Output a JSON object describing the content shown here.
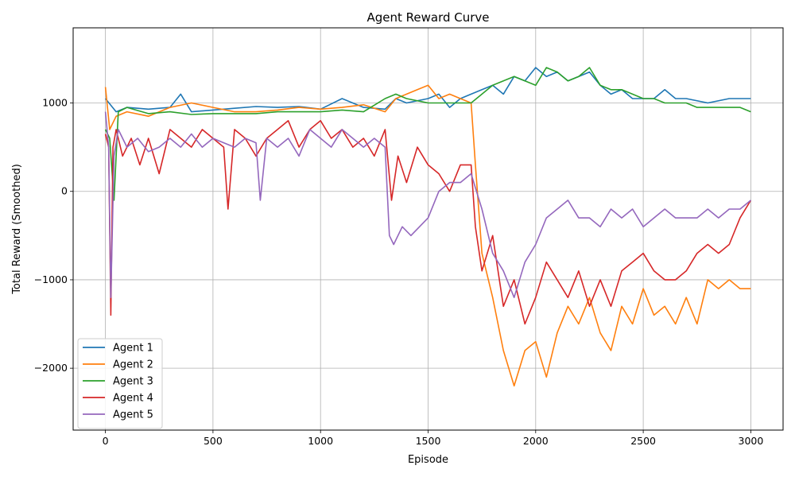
{
  "chart_data": {
    "type": "line",
    "title": "Agent Reward Curve",
    "xlabel": "Episode",
    "ylabel": "Total Reward (Smoothed)",
    "xlim": [
      -150,
      3150
    ],
    "ylim": [
      -2700,
      1850
    ],
    "xticks": [
      0,
      500,
      1000,
      1500,
      2000,
      2500,
      3000
    ],
    "yticks": [
      -2000,
      -1000,
      0,
      1000
    ],
    "grid": true,
    "legend_position": "lower-left",
    "series": [
      {
        "name": "Agent 1",
        "color": "#1f77b4",
        "x": [
          0,
          50,
          100,
          200,
          300,
          350,
          400,
          500,
          600,
          700,
          800,
          900,
          1000,
          1100,
          1200,
          1300,
          1350,
          1400,
          1500,
          1550,
          1600,
          1650,
          1700,
          1750,
          1800,
          1850,
          1900,
          1950,
          2000,
          2050,
          2100,
          2150,
          2200,
          2250,
          2300,
          2350,
          2400,
          2450,
          2500,
          2550,
          2600,
          2650,
          2700,
          2800,
          2900,
          3000
        ],
        "y": [
          1050,
          900,
          950,
          930,
          950,
          1100,
          900,
          920,
          940,
          960,
          950,
          960,
          930,
          1050,
          950,
          930,
          1050,
          1000,
          1050,
          1100,
          950,
          1050,
          1100,
          1150,
          1200,
          1100,
          1300,
          1250,
          1400,
          1300,
          1350,
          1250,
          1300,
          1350,
          1200,
          1100,
          1150,
          1050,
          1050,
          1050,
          1150,
          1050,
          1050,
          1000,
          1050,
          1050
        ]
      },
      {
        "name": "Agent 2",
        "color": "#ff7f0e",
        "x": [
          0,
          20,
          50,
          100,
          200,
          300,
          400,
          500,
          600,
          700,
          800,
          900,
          1000,
          1100,
          1200,
          1300,
          1350,
          1400,
          1450,
          1500,
          1550,
          1600,
          1650,
          1700,
          1720,
          1750,
          1800,
          1850,
          1900,
          1950,
          2000,
          2050,
          2100,
          2150,
          2200,
          2250,
          2300,
          2350,
          2400,
          2450,
          2500,
          2550,
          2600,
          2650,
          2700,
          2750,
          2800,
          2850,
          2900,
          2950,
          3000
        ],
        "y": [
          1180,
          700,
          850,
          900,
          850,
          950,
          1000,
          950,
          900,
          900,
          920,
          950,
          930,
          950,
          980,
          900,
          1050,
          1100,
          1150,
          1200,
          1050,
          1100,
          1050,
          1000,
          300,
          -700,
          -1200,
          -1800,
          -2200,
          -1800,
          -1700,
          -2100,
          -1600,
          -1300,
          -1500,
          -1200,
          -1600,
          -1800,
          -1300,
          -1500,
          -1100,
          -1400,
          -1300,
          -1500,
          -1200,
          -1500,
          -1000,
          -1100,
          -1000,
          -1100,
          -1100
        ]
      },
      {
        "name": "Agent 3",
        "color": "#2ca02c",
        "x": [
          0,
          20,
          40,
          60,
          100,
          200,
          300,
          400,
          500,
          600,
          700,
          800,
          900,
          1000,
          1100,
          1200,
          1300,
          1350,
          1400,
          1500,
          1600,
          1700,
          1750,
          1800,
          1850,
          1900,
          1950,
          2000,
          2050,
          2100,
          2150,
          2200,
          2250,
          2300,
          2350,
          2400,
          2450,
          2500,
          2550,
          2600,
          2650,
          2700,
          2750,
          2800,
          2850,
          2900,
          2950,
          3000
        ],
        "y": [
          700,
          600,
          -100,
          900,
          950,
          880,
          900,
          870,
          880,
          880,
          880,
          900,
          900,
          900,
          920,
          900,
          1050,
          1100,
          1050,
          1000,
          1000,
          1000,
          1100,
          1200,
          1250,
          1300,
          1250,
          1200,
          1400,
          1350,
          1250,
          1300,
          1400,
          1200,
          1150,
          1150,
          1100,
          1050,
          1050,
          1000,
          1000,
          1000,
          950,
          950,
          950,
          950,
          950,
          900
        ]
      },
      {
        "name": "Agent 4",
        "color": "#d62728",
        "x": [
          0,
          15,
          25,
          35,
          50,
          80,
          120,
          160,
          200,
          250,
          300,
          350,
          400,
          450,
          500,
          550,
          570,
          600,
          650,
          700,
          750,
          800,
          850,
          900,
          950,
          1000,
          1050,
          1100,
          1150,
          1200,
          1250,
          1300,
          1330,
          1360,
          1400,
          1450,
          1500,
          1550,
          1600,
          1650,
          1700,
          1720,
          1750,
          1800,
          1850,
          1900,
          1950,
          2000,
          2050,
          2100,
          2150,
          2200,
          2250,
          2300,
          2350,
          2400,
          2450,
          2500,
          2550,
          2600,
          2650,
          2700,
          2750,
          2800,
          2850,
          2900,
          2950,
          3000
        ],
        "y": [
          650,
          500,
          -1400,
          500,
          700,
          400,
          600,
          300,
          600,
          200,
          700,
          600,
          500,
          700,
          600,
          500,
          -200,
          700,
          600,
          400,
          600,
          700,
          800,
          500,
          700,
          800,
          600,
          700,
          500,
          600,
          400,
          700,
          -100,
          400,
          100,
          500,
          300,
          200,
          0,
          300,
          300,
          -400,
          -900,
          -500,
          -1300,
          -1000,
          -1500,
          -1200,
          -800,
          -1000,
          -1200,
          -900,
          -1300,
          -1000,
          -1300,
          -900,
          -800,
          -700,
          -900,
          -1000,
          -1000,
          -900,
          -700,
          -600,
          -700,
          -600,
          -300,
          -100
        ]
      },
      {
        "name": "Agent 5",
        "color": "#9467bd",
        "x": [
          0,
          15,
          25,
          40,
          60,
          100,
          150,
          200,
          250,
          300,
          350,
          400,
          450,
          500,
          550,
          600,
          650,
          700,
          720,
          750,
          800,
          850,
          900,
          950,
          1000,
          1050,
          1100,
          1150,
          1200,
          1250,
          1300,
          1320,
          1340,
          1380,
          1420,
          1460,
          1500,
          1550,
          1600,
          1650,
          1700,
          1750,
          1800,
          1850,
          1900,
          1950,
          2000,
          2050,
          2100,
          2150,
          2200,
          2250,
          2300,
          2350,
          2400,
          2450,
          2500,
          2550,
          2600,
          2650,
          2700,
          2750,
          2800,
          2850,
          2900,
          2950,
          3000
        ],
        "y": [
          900,
          500,
          -1200,
          400,
          700,
          500,
          600,
          450,
          500,
          600,
          500,
          650,
          500,
          600,
          550,
          500,
          600,
          550,
          -100,
          600,
          500,
          600,
          400,
          700,
          600,
          500,
          700,
          600,
          500,
          600,
          500,
          -500,
          -600,
          -400,
          -500,
          -400,
          -300,
          0,
          100,
          100,
          200,
          -200,
          -700,
          -900,
          -1200,
          -800,
          -600,
          -300,
          -200,
          -100,
          -300,
          -300,
          -400,
          -200,
          -300,
          -200,
          -400,
          -300,
          -200,
          -300,
          -300,
          -300,
          -200,
          -300,
          -200,
          -200,
          -100
        ]
      }
    ]
  }
}
